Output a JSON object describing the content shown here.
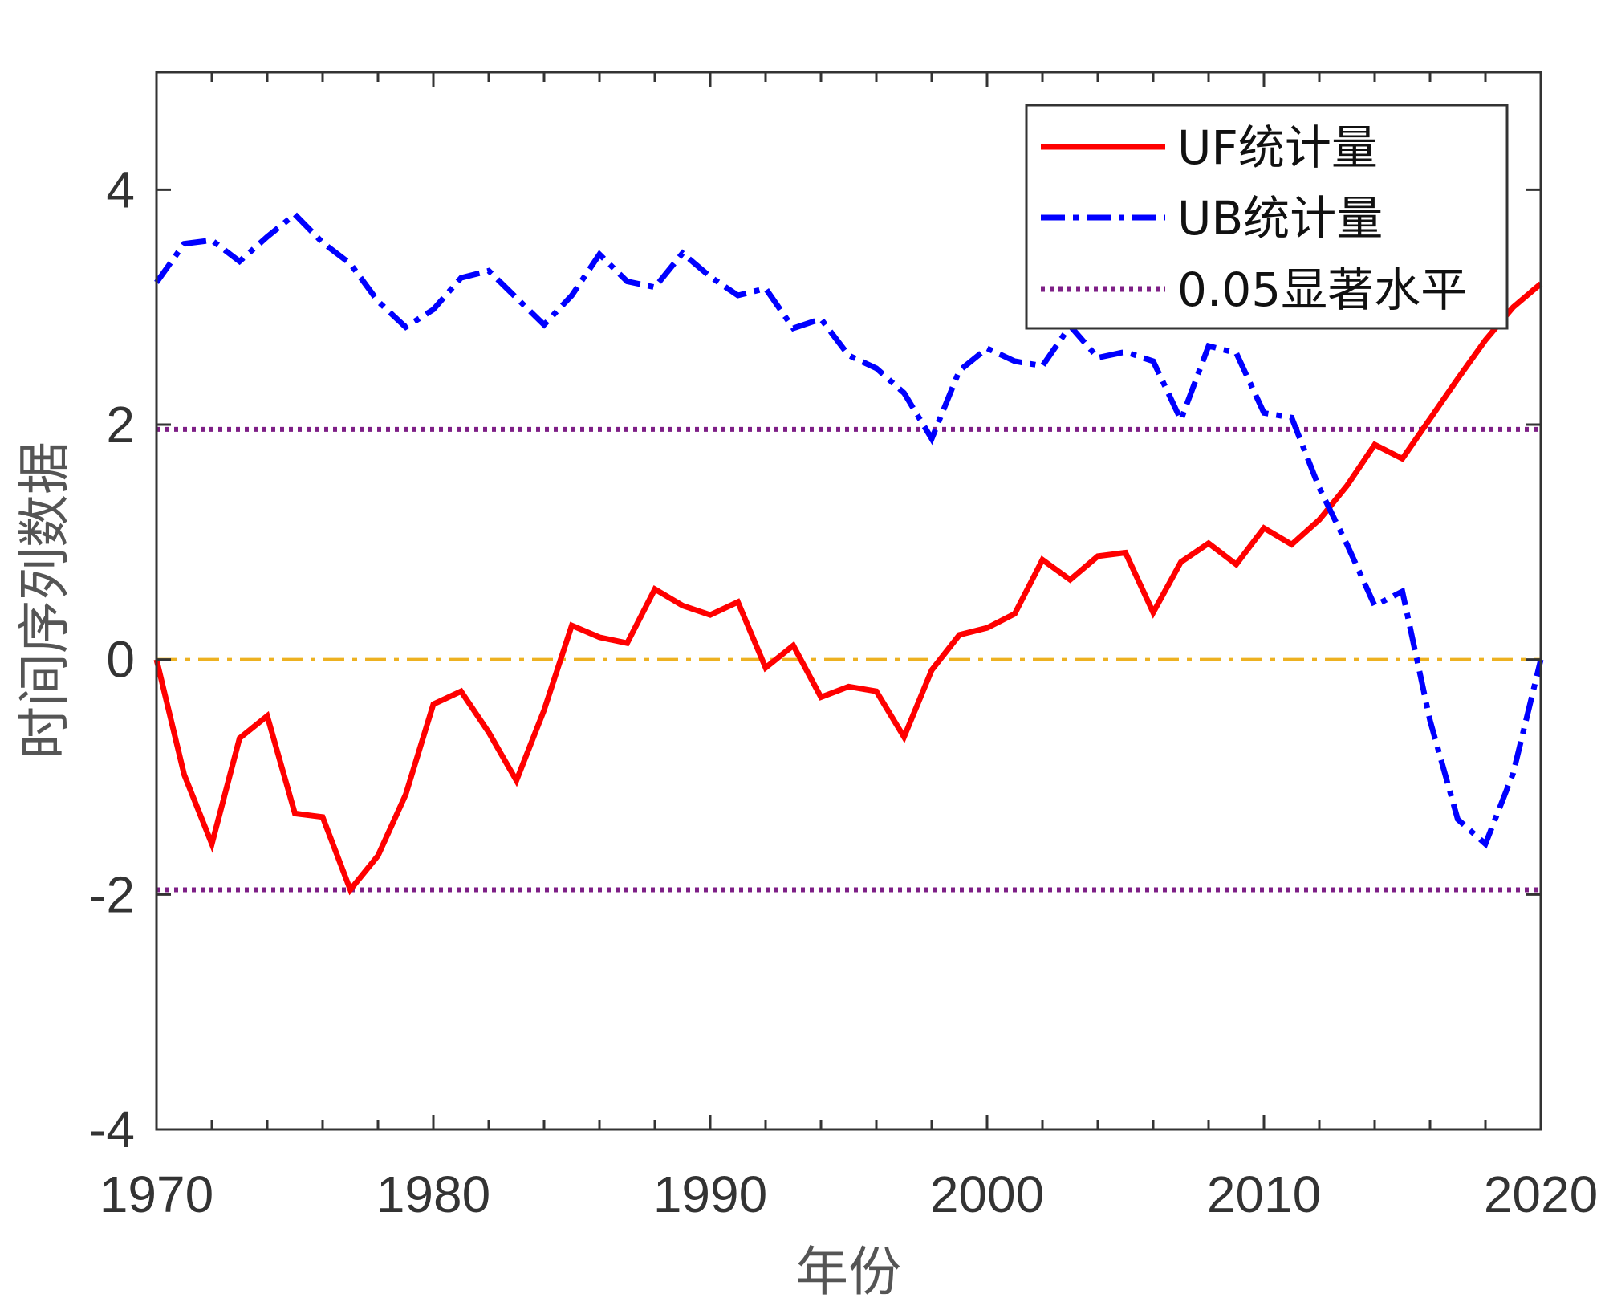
{
  "chart_data": {
    "type": "line",
    "xlabel": "年份",
    "ylabel": "时间序列数据",
    "xlim": [
      1970,
      2020
    ],
    "ylim": [
      -4,
      5
    ],
    "x_ticks": [
      1970,
      1980,
      1990,
      2000,
      2010,
      2020
    ],
    "y_ticks": [
      -4,
      -2,
      0,
      2,
      4
    ],
    "x_tick_labels": [
      "1970",
      "1980",
      "1990",
      "2000",
      "2010",
      "2020"
    ],
    "y_tick_labels": [
      "-4",
      "-2",
      "0",
      "2",
      "4"
    ],
    "legend_position": "top-right",
    "grid": false,
    "series": [
      {
        "name": "UF统计量",
        "color": "#ff0000",
        "style": "solid",
        "x": [
          1970,
          1971,
          1972,
          1973,
          1974,
          1975,
          1976,
          1977,
          1978,
          1979,
          1980,
          1981,
          1982,
          1983,
          1984,
          1985,
          1986,
          1987,
          1988,
          1989,
          1990,
          1991,
          1992,
          1993,
          1994,
          1995,
          1996,
          1997,
          1998,
          1999,
          2000,
          2001,
          2002,
          2003,
          2004,
          2005,
          2006,
          2007,
          2008,
          2009,
          2010,
          2011,
          2012,
          2013,
          2014,
          2015,
          2016,
          2017,
          2018,
          2019,
          2020
        ],
        "y": [
          0,
          -0.98,
          -1.57,
          -0.67,
          -0.48,
          -1.31,
          -1.34,
          -1.96,
          -1.67,
          -1.15,
          -0.38,
          -0.27,
          -0.62,
          -1.03,
          -0.43,
          0.29,
          0.19,
          0.14,
          0.6,
          0.46,
          0.38,
          0.49,
          -0.07,
          0.12,
          -0.32,
          -0.23,
          -0.27,
          -0.66,
          -0.09,
          0.21,
          0.27,
          0.39,
          0.85,
          0.68,
          0.88,
          0.91,
          0.4,
          0.83,
          0.99,
          0.81,
          1.12,
          0.98,
          1.19,
          1.48,
          1.83,
          1.71,
          2.05,
          2.39,
          2.72,
          3.0,
          3.2
        ]
      },
      {
        "name": "UB统计量",
        "color": "#0000ff",
        "style": "dash-dot",
        "x": [
          1970,
          1971,
          1972,
          1973,
          1974,
          1975,
          1976,
          1977,
          1978,
          1979,
          1980,
          1981,
          1982,
          1983,
          1984,
          1985,
          1986,
          1987,
          1988,
          1989,
          1990,
          1991,
          1992,
          1993,
          1994,
          1995,
          1996,
          1997,
          1998,
          1999,
          2000,
          2001,
          2002,
          2003,
          2004,
          2005,
          2006,
          2007,
          2008,
          2009,
          2010,
          2011,
          2012,
          2013,
          2014,
          2015,
          2016,
          2017,
          2018,
          2019,
          2020
        ],
        "y": [
          3.21,
          3.54,
          3.57,
          3.39,
          3.6,
          3.79,
          3.55,
          3.37,
          3.05,
          2.83,
          2.98,
          3.25,
          3.31,
          3.08,
          2.85,
          3.1,
          3.45,
          3.22,
          3.17,
          3.46,
          3.26,
          3.1,
          3.16,
          2.82,
          2.9,
          2.59,
          2.48,
          2.27,
          1.88,
          2.46,
          2.65,
          2.54,
          2.5,
          2.84,
          2.57,
          2.62,
          2.54,
          2.04,
          2.67,
          2.61,
          2.1,
          2.06,
          1.46,
          0.98,
          0.46,
          0.58,
          -0.52,
          -1.36,
          -1.57,
          -0.97,
          0
        ]
      },
      {
        "name": "0.05显著水平",
        "color": "#7e1f86",
        "style": "dotted",
        "y_constant": [
          1.96,
          -1.96
        ]
      },
      {
        "color": "#edb120",
        "style": "dash-dot",
        "y_constant": [
          0
        ]
      }
    ]
  }
}
